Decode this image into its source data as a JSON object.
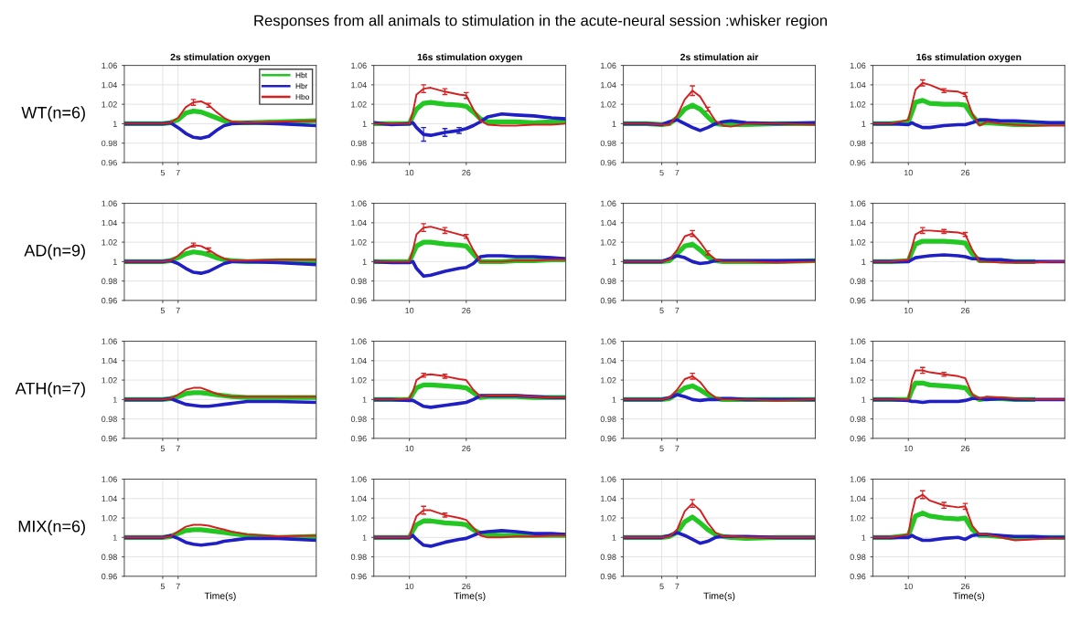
{
  "chart_data": [
    {
      "type": "line",
      "title": "2s stimulation oxygen",
      "ylabel": "WT(n=6)",
      "annotations": [
        "Responses from all animals to stimulation in the acute-neural session :whisker region"
      ],
      "legend": "top right",
      "grid": true,
      "xlim": [
        0,
        25
      ],
      "xticks": [
        5,
        7
      ],
      "ylim": [
        0.96,
        1.06
      ],
      "yticks": [
        0.96,
        0.98,
        1,
        1.02,
        1.04,
        1.06
      ],
      "x": [
        0,
        3,
        5,
        6,
        7,
        8,
        9,
        10,
        11,
        12,
        13,
        14,
        16,
        20,
        25
      ],
      "series": [
        {
          "name": "Hbt",
          "color": "#22c722",
          "values": [
            1,
            1,
            1,
            1.001,
            1.004,
            1.011,
            1.013,
            1.012,
            1.009,
            1.006,
            1.003,
            1.001,
            1.001,
            1.002,
            1.003
          ]
        },
        {
          "name": "Hbr",
          "color": "#1f1fc4",
          "values": [
            1,
            1,
            1,
            1.001,
            0.996,
            0.99,
            0.986,
            0.985,
            0.987,
            0.993,
            0.998,
            1.0,
            1.001,
            1.0,
            0.998
          ]
        },
        {
          "name": "Hbo",
          "color": "#d42020",
          "values": [
            1,
            1,
            1,
            1.001,
            1.006,
            1.017,
            1.022,
            1.023,
            1.019,
            1.012,
            1.006,
            1.002,
            1.001,
            1.002,
            1.003
          ],
          "errors": [
            null,
            null,
            null,
            null,
            null,
            null,
            0.003,
            null,
            0.002,
            null,
            null,
            null,
            null,
            null,
            null
          ]
        }
      ]
    },
    {
      "type": "line",
      "title": "16s stimulation oxygen",
      "grid": true,
      "xlim": [
        0,
        54
      ],
      "xticks": [
        10,
        26
      ],
      "ylim": [
        0.96,
        1.06
      ],
      "yticks": [
        0.96,
        0.98,
        1,
        1.02,
        1.04,
        1.06
      ],
      "x": [
        0,
        5,
        10,
        11,
        12,
        14,
        16,
        20,
        24,
        26,
        28,
        30,
        32,
        36,
        40,
        45,
        50,
        54
      ],
      "series": [
        {
          "color": "#22c722",
          "values": [
            1,
            1,
            1,
            1.008,
            1.015,
            1.021,
            1.022,
            1.02,
            1.019,
            1.018,
            1.012,
            1.005,
            1.002,
            1.002,
            1.002,
            1.001,
            1.002,
            1.002
          ]
        },
        {
          "color": "#1f1fc4",
          "values": [
            1.001,
            0.999,
            1.0,
            1.001,
            0.996,
            0.989,
            0.988,
            0.991,
            0.993,
            0.995,
            0.998,
            1.002,
            1.007,
            1.01,
            1.009,
            1.008,
            1.006,
            1.005
          ],
          "errors": [
            null,
            null,
            null,
            null,
            null,
            0.007,
            null,
            0.004,
            0.003,
            null,
            null,
            null,
            null,
            null,
            null,
            null,
            null,
            null
          ]
        },
        {
          "color": "#d42020",
          "values": [
            1,
            1,
            1,
            1.012,
            1.03,
            1.036,
            1.037,
            1.033,
            1.03,
            1.029,
            1.015,
            1.003,
            0.999,
            0.998,
            0.998,
            0.999,
            0.999,
            1.0
          ],
          "errors": [
            null,
            null,
            null,
            null,
            null,
            0.004,
            null,
            0.003,
            null,
            0.003,
            null,
            null,
            null,
            null,
            null,
            null,
            null,
            null
          ]
        }
      ]
    },
    {
      "type": "line",
      "title": "2s stimulation air",
      "grid": true,
      "xlim": [
        0,
        25
      ],
      "xticks": [
        5,
        7
      ],
      "ylim": [
        0.96,
        1.06
      ],
      "yticks": [
        0.96,
        0.98,
        1,
        1.02,
        1.04,
        1.06
      ],
      "x": [
        0,
        3,
        5,
        6,
        7,
        8,
        9,
        10,
        11,
        12,
        13,
        14,
        16,
        20,
        25
      ],
      "series": [
        {
          "color": "#22c722",
          "values": [
            1,
            1,
            0.999,
            1.0,
            1.006,
            1.015,
            1.019,
            1.015,
            1.007,
            1.0,
            0.999,
            0.999,
            0.999,
            1.0,
            1.0
          ]
        },
        {
          "color": "#1f1fc4",
          "values": [
            1,
            1,
            0.999,
            1.002,
            1.004,
            1.0,
            0.996,
            0.993,
            0.996,
            1.0,
            1.002,
            1.003,
            1.001,
            1.0,
            1.001
          ]
        },
        {
          "color": "#d42020",
          "values": [
            1,
            1,
            0.999,
            0.999,
            1.008,
            1.025,
            1.034,
            1.028,
            1.015,
            1.003,
            0.998,
            0.997,
            1.0,
            1.0,
            0.999
          ],
          "errors": [
            null,
            null,
            null,
            null,
            null,
            null,
            0.005,
            null,
            0.002,
            null,
            null,
            null,
            null,
            null,
            null
          ]
        }
      ]
    },
    {
      "type": "line",
      "title": "16s stimulation oxygen",
      "grid": true,
      "xlim": [
        0,
        54
      ],
      "xticks": [
        10,
        26
      ],
      "ylim": [
        0.96,
        1.06
      ],
      "yticks": [
        0.96,
        0.98,
        1,
        1.02,
        1.04,
        1.06
      ],
      "x": [
        0,
        5,
        10,
        11,
        12,
        14,
        16,
        20,
        24,
        26,
        28,
        30,
        32,
        36,
        40,
        45,
        50,
        54
      ],
      "series": [
        {
          "color": "#22c722",
          "values": [
            1,
            1,
            1.002,
            1.012,
            1.022,
            1.024,
            1.021,
            1.02,
            1.02,
            1.019,
            1.008,
            1.0,
            1.001,
            1.0,
            0.999,
            0.999,
            1.0,
            1.0
          ]
        },
        {
          "color": "#1f1fc4",
          "values": [
            1,
            1,
            0.999,
            1.001,
            0.999,
            0.996,
            0.996,
            0.998,
            0.999,
            0.999,
            1.001,
            1.004,
            1.004,
            1.003,
            1.003,
            1.002,
            1.001,
            1.001
          ]
        },
        {
          "color": "#d42020",
          "values": [
            1,
            1,
            1.004,
            1.02,
            1.035,
            1.042,
            1.04,
            1.034,
            1.033,
            1.03,
            1.01,
            0.998,
            1.002,
            1.0,
            0.999,
            0.998,
            0.998,
            0.998
          ],
          "errors": [
            null,
            null,
            null,
            null,
            null,
            0.003,
            null,
            0.002,
            null,
            0.002,
            null,
            null,
            null,
            null,
            null,
            null,
            null,
            null
          ]
        }
      ]
    },
    {
      "type": "line",
      "ylabel": "AD(n=9)",
      "grid": true,
      "xlim": [
        0,
        25
      ],
      "xticks": [
        5,
        7
      ],
      "ylim": [
        0.96,
        1.06
      ],
      "yticks": [
        0.96,
        0.98,
        1,
        1.02,
        1.04,
        1.06
      ],
      "x": [
        0,
        3,
        5,
        6,
        7,
        8,
        9,
        10,
        11,
        12,
        13,
        14,
        16,
        20,
        25
      ],
      "series": [
        {
          "color": "#22c722",
          "values": [
            1,
            1,
            1,
            1.001,
            1.004,
            1.008,
            1.01,
            1.009,
            1.007,
            1.004,
            1.002,
            1.001,
            1.0,
            1.001,
            1.001
          ]
        },
        {
          "color": "#1f1fc4",
          "values": [
            1,
            1,
            1,
            1.001,
            0.998,
            0.993,
            0.989,
            0.988,
            0.99,
            0.994,
            0.998,
            1.0,
            1.0,
            0.999,
            0.997
          ]
        },
        {
          "color": "#d42020",
          "values": [
            1,
            1,
            1,
            1.001,
            1.006,
            1.013,
            1.017,
            1.016,
            1.012,
            1.007,
            1.003,
            1.001,
            1.001,
            1.002,
            1.002
          ],
          "errors": [
            null,
            null,
            null,
            null,
            null,
            null,
            0.002,
            null,
            0.002,
            null,
            null,
            null,
            null,
            null,
            null
          ]
        }
      ]
    },
    {
      "type": "line",
      "grid": true,
      "xlim": [
        0,
        54
      ],
      "xticks": [
        10,
        26
      ],
      "ylim": [
        0.96,
        1.06
      ],
      "yticks": [
        0.96,
        0.98,
        1,
        1.02,
        1.04,
        1.06
      ],
      "x": [
        0,
        5,
        10,
        11,
        12,
        14,
        16,
        20,
        24,
        26,
        28,
        30,
        32,
        36,
        40,
        45,
        50,
        54
      ],
      "series": [
        {
          "color": "#22c722",
          "values": [
            1,
            1,
            1,
            1.008,
            1.016,
            1.02,
            1.02,
            1.018,
            1.017,
            1.016,
            1.008,
            1.0,
            1.0,
            1.0,
            1.001,
            1.001,
            1.002,
            1.002
          ]
        },
        {
          "color": "#1f1fc4",
          "values": [
            1,
            0.999,
            0.999,
            1.0,
            0.993,
            0.985,
            0.986,
            0.99,
            0.993,
            0.994,
            0.998,
            1.005,
            1.006,
            1.006,
            1.005,
            1.005,
            1.004,
            1.003
          ]
        },
        {
          "color": "#d42020",
          "values": [
            1,
            1,
            1,
            1.012,
            1.028,
            1.035,
            1.036,
            1.032,
            1.028,
            1.026,
            1.012,
            1.0,
            1.0,
            1.0,
            1.001,
            1.001,
            1.002,
            1.002
          ],
          "errors": [
            null,
            null,
            null,
            null,
            null,
            0.004,
            null,
            0.003,
            null,
            0.002,
            null,
            null,
            null,
            null,
            null,
            null,
            null,
            null
          ]
        }
      ]
    },
    {
      "type": "line",
      "grid": true,
      "xlim": [
        0,
        25
      ],
      "xticks": [
        5,
        7
      ],
      "ylim": [
        0.96,
        1.06
      ],
      "yticks": [
        0.96,
        0.98,
        1,
        1.02,
        1.04,
        1.06
      ],
      "x": [
        0,
        3,
        5,
        6,
        7,
        8,
        9,
        10,
        11,
        12,
        13,
        14,
        16,
        20,
        25
      ],
      "series": [
        {
          "color": "#22c722",
          "values": [
            1,
            1,
            1,
            1.001,
            1.008,
            1.016,
            1.018,
            1.012,
            1.005,
            1.001,
            1.0,
            1.0,
            1.0,
            1.0,
            1.001
          ]
        },
        {
          "color": "#1f1fc4",
          "values": [
            1,
            1,
            1,
            1.003,
            1.006,
            1.004,
            1.0,
            0.998,
            0.999,
            1.001,
            1.001,
            1.001,
            1.001,
            1.001,
            1.001
          ]
        },
        {
          "color": "#d42020",
          "values": [
            1,
            1,
            1,
            1.002,
            1.012,
            1.026,
            1.029,
            1.02,
            1.009,
            1.002,
            1.0,
            1.0,
            1.0,
            0.999,
            1.0
          ],
          "errors": [
            null,
            null,
            null,
            null,
            null,
            null,
            0.003,
            null,
            0.002,
            null,
            null,
            null,
            null,
            null,
            null
          ]
        }
      ]
    },
    {
      "type": "line",
      "grid": true,
      "xlim": [
        0,
        54
      ],
      "xticks": [
        10,
        26
      ],
      "ylim": [
        0.96,
        1.06
      ],
      "yticks": [
        0.96,
        0.98,
        1,
        1.02,
        1.04,
        1.06
      ],
      "x": [
        0,
        5,
        10,
        11,
        12,
        14,
        16,
        20,
        24,
        26,
        28,
        30,
        32,
        36,
        40,
        45,
        50,
        54
      ],
      "series": [
        {
          "color": "#22c722",
          "values": [
            1,
            1,
            1.001,
            1.01,
            1.018,
            1.021,
            1.021,
            1.021,
            1.02,
            1.019,
            1.008,
            1.001,
            1.001,
            1.001,
            1.0,
            1.0,
            null,
            null
          ]
        },
        {
          "color": "#1f1fc4",
          "values": [
            1,
            1,
            1,
            1.002,
            1.004,
            1.005,
            1.006,
            1.007,
            1.006,
            1.005,
            1.003,
            1.003,
            1.002,
            1.002,
            1.0,
            1.0,
            1.0,
            1.0
          ]
        },
        {
          "color": "#d42020",
          "values": [
            1,
            1,
            1.002,
            1.015,
            1.028,
            1.032,
            1.032,
            1.031,
            1.03,
            1.028,
            1.012,
            1.0,
            1.0,
            0.999,
            0.999,
            0.999,
            1.0,
            1.0
          ],
          "errors": [
            null,
            null,
            null,
            null,
            null,
            0.003,
            null,
            0.002,
            null,
            0.002,
            null,
            null,
            null,
            null,
            null,
            null,
            null,
            null
          ]
        }
      ]
    },
    {
      "type": "line",
      "ylabel": "ATH(n=7)",
      "grid": true,
      "xlim": [
        0,
        25
      ],
      "xticks": [
        5,
        7
      ],
      "ylim": [
        0.96,
        1.06
      ],
      "yticks": [
        0.96,
        0.98,
        1,
        1.02,
        1.04,
        1.06
      ],
      "x": [
        0,
        3,
        5,
        6,
        7,
        8,
        9,
        10,
        11,
        12,
        13,
        14,
        16,
        20,
        25
      ],
      "series": [
        {
          "color": "#22c722",
          "values": [
            1,
            1,
            1,
            1.001,
            1.003,
            1.006,
            1.007,
            1.007,
            1.006,
            1.005,
            1.004,
            1.003,
            1.002,
            1.002,
            1.002
          ]
        },
        {
          "color": "#1f1fc4",
          "values": [
            1,
            1,
            1,
            1.001,
            0.998,
            0.995,
            0.994,
            0.993,
            0.993,
            0.994,
            0.995,
            0.996,
            0.998,
            0.998,
            0.997
          ]
        },
        {
          "color": "#d42020",
          "values": [
            1,
            1,
            1,
            1.001,
            1.005,
            1.01,
            1.012,
            1.012,
            1.009,
            1.006,
            1.004,
            1.003,
            1.003,
            1.003,
            1.003
          ]
        }
      ]
    },
    {
      "type": "line",
      "grid": true,
      "xlim": [
        0,
        54
      ],
      "xticks": [
        10,
        26
      ],
      "ylim": [
        0.96,
        1.06
      ],
      "yticks": [
        0.96,
        0.98,
        1,
        1.02,
        1.04,
        1.06
      ],
      "x": [
        0,
        5,
        10,
        11,
        12,
        14,
        16,
        20,
        24,
        26,
        28,
        30,
        32,
        36,
        40,
        45,
        50,
        54
      ],
      "series": [
        {
          "color": "#22c722",
          "values": [
            1,
            1,
            1,
            1.006,
            1.012,
            1.015,
            1.015,
            1.014,
            1.013,
            1.012,
            1.007,
            1.002,
            1.003,
            1.003,
            1.003,
            1.002,
            1.002,
            1.002
          ]
        },
        {
          "color": "#1f1fc4",
          "values": [
            1,
            1,
            0.999,
            0.999,
            0.997,
            0.993,
            0.992,
            0.994,
            0.996,
            0.997,
            1.0,
            1.004,
            1.004,
            1.004,
            1.004,
            1.003,
            1.002,
            1.002
          ]
        },
        {
          "color": "#d42020",
          "values": [
            1,
            1,
            1.001,
            1.008,
            1.02,
            1.025,
            1.026,
            1.024,
            1.021,
            1.02,
            1.01,
            1.003,
            1.004,
            1.004,
            1.004,
            1.003,
            1.002,
            1.002
          ],
          "errors": [
            null,
            null,
            null,
            null,
            null,
            0.002,
            null,
            0.002,
            null,
            null,
            null,
            null,
            null,
            null,
            null,
            null,
            null,
            null
          ]
        }
      ]
    },
    {
      "type": "line",
      "grid": true,
      "xlim": [
        0,
        25
      ],
      "xticks": [
        5,
        7
      ],
      "ylim": [
        0.96,
        1.06
      ],
      "yticks": [
        0.96,
        0.98,
        1,
        1.02,
        1.04,
        1.06
      ],
      "x": [
        0,
        3,
        5,
        6,
        7,
        8,
        9,
        10,
        11,
        12,
        13,
        14,
        16,
        20,
        25
      ],
      "series": [
        {
          "color": "#22c722",
          "values": [
            1,
            1,
            1,
            1.001,
            1.006,
            1.012,
            1.014,
            1.01,
            1.005,
            1.001,
            1.0,
            1.0,
            1.0,
            1.0,
            1.0
          ]
        },
        {
          "color": "#1f1fc4",
          "values": [
            1,
            1,
            1,
            1.002,
            1.005,
            1.003,
            1.0,
            0.999,
            1.0,
            1.0,
            1.001,
            1.001,
            1.0,
            1.0,
            1.0
          ]
        },
        {
          "color": "#d42020",
          "values": [
            1,
            1,
            1,
            1.002,
            1.01,
            1.021,
            1.024,
            1.018,
            1.008,
            1.002,
            1.0,
            1.0,
            1.0,
            0.999,
            1.0
          ],
          "errors": [
            null,
            null,
            null,
            null,
            null,
            null,
            0.003,
            null,
            null,
            null,
            null,
            null,
            null,
            null,
            null
          ]
        }
      ]
    },
    {
      "type": "line",
      "grid": true,
      "xlim": [
        0,
        54
      ],
      "xticks": [
        10,
        26
      ],
      "ylim": [
        0.96,
        1.06
      ],
      "yticks": [
        0.96,
        0.98,
        1,
        1.02,
        1.04,
        1.06
      ],
      "x": [
        0,
        5,
        10,
        11,
        12,
        14,
        16,
        20,
        24,
        26,
        28,
        30,
        32,
        36,
        40,
        45,
        50,
        54
      ],
      "series": [
        {
          "color": "#22c722",
          "values": [
            1,
            1,
            1.0,
            1.01,
            1.017,
            1.017,
            1.015,
            1.014,
            1.013,
            1.012,
            1.004,
            1.0,
            1.001,
            1.001,
            1.0,
            1.0,
            null,
            null
          ]
        },
        {
          "color": "#1f1fc4",
          "values": [
            1,
            1,
            0.999,
            0.998,
            0.998,
            0.997,
            0.998,
            0.998,
            0.998,
            0.999,
            1.001,
            1.001,
            1.0,
            1.001,
            1.0,
            1.0,
            1.0,
            1.0
          ]
        },
        {
          "color": "#d42020",
          "values": [
            1,
            1,
            1.0,
            1.02,
            1.03,
            1.03,
            1.028,
            1.026,
            1.024,
            1.022,
            1.005,
            1.001,
            1.003,
            1.002,
            1.001,
            1.0,
            1.0,
            1.0
          ],
          "errors": [
            null,
            null,
            null,
            null,
            null,
            0.003,
            null,
            0.002,
            null,
            null,
            null,
            null,
            null,
            null,
            null,
            null,
            null,
            null
          ]
        }
      ]
    },
    {
      "type": "line",
      "ylabel": "MIX(n=6)",
      "xlabel": "Time(s)",
      "grid": true,
      "xlim": [
        0,
        25
      ],
      "xticks": [
        5,
        7
      ],
      "ylim": [
        0.96,
        1.06
      ],
      "yticks": [
        0.96,
        0.98,
        1,
        1.02,
        1.04,
        1.06
      ],
      "x": [
        0,
        3,
        5,
        6,
        7,
        8,
        9,
        10,
        11,
        12,
        13,
        14,
        16,
        20,
        25
      ],
      "series": [
        {
          "color": "#22c722",
          "values": [
            1,
            1,
            1,
            1.001,
            1.004,
            1.007,
            1.008,
            1.008,
            1.007,
            1.006,
            1.005,
            1.004,
            1.002,
            1.0,
            1.001
          ]
        },
        {
          "color": "#1f1fc4",
          "values": [
            1,
            1,
            1,
            1.002,
            0.999,
            0.995,
            0.993,
            0.992,
            0.993,
            0.994,
            0.996,
            0.997,
            0.999,
            0.999,
            0.997
          ]
        },
        {
          "color": "#d42020",
          "values": [
            1,
            1,
            1,
            1.001,
            1.006,
            1.011,
            1.013,
            1.013,
            1.012,
            1.01,
            1.008,
            1.006,
            1.003,
            1.001,
            1.002
          ]
        }
      ]
    },
    {
      "type": "line",
      "xlabel": "Time(s)",
      "grid": true,
      "xlim": [
        0,
        54
      ],
      "xticks": [
        10,
        26
      ],
      "ylim": [
        0.96,
        1.06
      ],
      "yticks": [
        0.96,
        0.98,
        1,
        1.02,
        1.04,
        1.06
      ],
      "x": [
        0,
        5,
        10,
        11,
        12,
        14,
        16,
        20,
        24,
        26,
        28,
        30,
        32,
        36,
        40,
        45,
        50,
        54
      ],
      "series": [
        {
          "color": "#22c722",
          "values": [
            1,
            1,
            1,
            1.007,
            1.013,
            1.017,
            1.017,
            1.015,
            1.014,
            1.013,
            1.008,
            1.004,
            1.003,
            1.002,
            1.002,
            1.002,
            1.002,
            1.002
          ]
        },
        {
          "color": "#1f1fc4",
          "values": [
            1,
            1,
            1,
            1.002,
            0.998,
            0.992,
            0.991,
            0.995,
            0.998,
            0.999,
            1.002,
            1.005,
            1.006,
            1.007,
            1.006,
            1.004,
            1.004,
            1.003
          ]
        },
        {
          "color": "#d42020",
          "values": [
            1,
            1,
            1,
            1.012,
            1.022,
            1.028,
            1.028,
            1.023,
            1.02,
            1.018,
            1.01,
            1.002,
            1.0,
            1.0,
            1.001,
            1.001,
            1.002,
            1.002
          ],
          "errors": [
            null,
            null,
            null,
            null,
            null,
            0.004,
            null,
            0.002,
            null,
            null,
            null,
            null,
            null,
            null,
            null,
            null,
            null,
            null
          ]
        }
      ]
    },
    {
      "type": "line",
      "xlabel": "Time(s)",
      "grid": true,
      "xlim": [
        0,
        25
      ],
      "xticks": [
        5,
        7
      ],
      "ylim": [
        0.96,
        1.06
      ],
      "yticks": [
        0.96,
        0.98,
        1,
        1.02,
        1.04,
        1.06
      ],
      "x": [
        0,
        3,
        5,
        6,
        7,
        8,
        9,
        10,
        11,
        12,
        13,
        14,
        16,
        20,
        25
      ],
      "series": [
        {
          "color": "#22c722",
          "values": [
            1,
            1,
            1,
            1.001,
            1.005,
            1.016,
            1.021,
            1.015,
            1.008,
            1.003,
            1.001,
            1.0,
            0.999,
            1.0,
            1.0
          ]
        },
        {
          "color": "#1f1fc4",
          "values": [
            1,
            1,
            1,
            1.002,
            1.005,
            1.002,
            0.998,
            0.994,
            0.996,
            1.0,
            1.001,
            1.001,
            1.001,
            1.0,
            1.0
          ]
        },
        {
          "color": "#d42020",
          "values": [
            1,
            1,
            1,
            1.001,
            1.008,
            1.027,
            1.035,
            1.028,
            1.015,
            1.005,
            1.001,
            1.001,
            1.0,
            1.0,
            1.0
          ],
          "errors": [
            null,
            null,
            null,
            null,
            null,
            null,
            0.004,
            null,
            null,
            null,
            null,
            null,
            null,
            null,
            null
          ]
        }
      ]
    },
    {
      "type": "line",
      "xlabel": "Time(s)",
      "grid": true,
      "xlim": [
        0,
        54
      ],
      "xticks": [
        10,
        26
      ],
      "ylim": [
        0.96,
        1.06
      ],
      "yticks": [
        0.96,
        0.98,
        1,
        1.02,
        1.04,
        1.06
      ],
      "x": [
        0,
        5,
        10,
        11,
        12,
        14,
        16,
        20,
        24,
        26,
        28,
        30,
        32,
        36,
        40,
        45,
        50,
        54
      ],
      "series": [
        {
          "color": "#22c722",
          "values": [
            1,
            1,
            1.002,
            1.012,
            1.022,
            1.025,
            1.022,
            1.02,
            1.019,
            1.02,
            1.008,
            1.002,
            1.002,
            1.001,
            0.999,
            1.0,
            1.0,
            1.0
          ]
        },
        {
          "color": "#1f1fc4",
          "values": [
            1,
            1,
            1.0,
            1.002,
            1.0,
            0.997,
            0.997,
            0.999,
            1.0,
            0.998,
            1.002,
            1.003,
            1.003,
            1.002,
            1.001,
            1.001,
            1.0,
            1.0
          ]
        },
        {
          "color": "#d42020",
          "values": [
            1,
            1,
            1.003,
            1.025,
            1.04,
            1.044,
            1.038,
            1.033,
            1.031,
            1.032,
            1.012,
            1.003,
            1.003,
            1.0,
            0.997,
            0.998,
            0.999,
            0.999
          ],
          "errors": [
            null,
            null,
            null,
            null,
            null,
            0.004,
            null,
            0.003,
            null,
            0.003,
            null,
            null,
            null,
            null,
            null,
            null,
            null,
            null
          ]
        }
      ]
    }
  ]
}
